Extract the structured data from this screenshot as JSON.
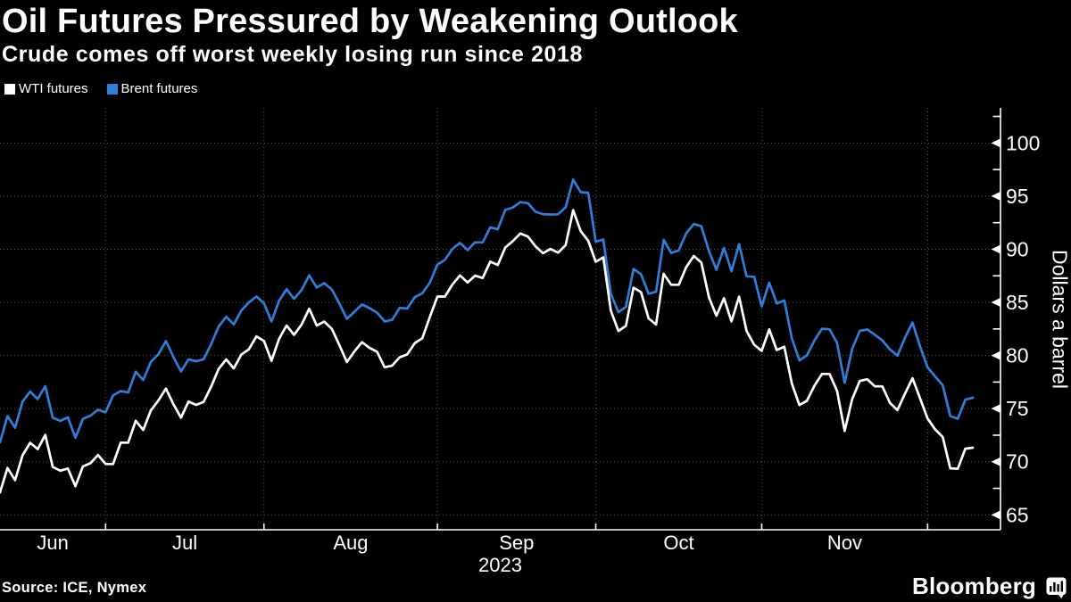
{
  "header": {
    "title": "Oil Futures Pressured by Weakening Outlook",
    "subtitle": "Crude comes off worst weekly losing run since 2018"
  },
  "footer": {
    "source": "Source: ICE, Nymex",
    "brand": "Bloomberg"
  },
  "colors": {
    "background": "#000000",
    "text": "#FFFFFF",
    "grid": "#545454",
    "wti": "#FFFFFF",
    "brent": "#2F7ED9"
  },
  "chart_data": {
    "type": "line",
    "title": "Oil Futures Pressured by Weakening Outlook",
    "subtitle": "Crude comes off worst weekly losing run since 2018",
    "ylabel": "Dollars a barrel",
    "xlabel": "",
    "ylim": [
      63.6,
      103.3
    ],
    "yticks": [
      65,
      70,
      75,
      80,
      85,
      90,
      95,
      100
    ],
    "y_minor_ticks": [
      67.5,
      72.5,
      77.5,
      82.5,
      87.5,
      92.5,
      97.5,
      102.5
    ],
    "grid": "dotted",
    "legend_position": "top-left",
    "x_axis": {
      "year_label": "2023",
      "month_labels": [
        "Jun",
        "Jul",
        "Aug",
        "Sep",
        "Oct",
        "Nov"
      ],
      "month_start_indices": [
        14,
        35,
        58,
        79,
        101,
        123
      ]
    },
    "dates": [
      "2023-06-12",
      "2023-06-13",
      "2023-06-14",
      "2023-06-15",
      "2023-06-16",
      "2023-06-20",
      "2023-06-21",
      "2023-06-22",
      "2023-06-23",
      "2023-06-26",
      "2023-06-27",
      "2023-06-28",
      "2023-06-29",
      "2023-06-30",
      "2023-07-03",
      "2023-07-04",
      "2023-07-05",
      "2023-07-06",
      "2023-07-07",
      "2023-07-10",
      "2023-07-11",
      "2023-07-12",
      "2023-07-13",
      "2023-07-14",
      "2023-07-17",
      "2023-07-18",
      "2023-07-19",
      "2023-07-20",
      "2023-07-21",
      "2023-07-24",
      "2023-07-25",
      "2023-07-26",
      "2023-07-27",
      "2023-07-28",
      "2023-07-31",
      "2023-08-01",
      "2023-08-02",
      "2023-08-03",
      "2023-08-04",
      "2023-08-07",
      "2023-08-08",
      "2023-08-09",
      "2023-08-10",
      "2023-08-11",
      "2023-08-14",
      "2023-08-15",
      "2023-08-16",
      "2023-08-17",
      "2023-08-18",
      "2023-08-21",
      "2023-08-22",
      "2023-08-23",
      "2023-08-24",
      "2023-08-25",
      "2023-08-28",
      "2023-08-29",
      "2023-08-30",
      "2023-08-31",
      "2023-09-01",
      "2023-09-04",
      "2023-09-05",
      "2023-09-06",
      "2023-09-07",
      "2023-09-08",
      "2023-09-11",
      "2023-09-12",
      "2023-09-13",
      "2023-09-14",
      "2023-09-15",
      "2023-09-18",
      "2023-09-19",
      "2023-09-20",
      "2023-09-21",
      "2023-09-22",
      "2023-09-25",
      "2023-09-26",
      "2023-09-27",
      "2023-09-28",
      "2023-09-29",
      "2023-10-02",
      "2023-10-03",
      "2023-10-04",
      "2023-10-05",
      "2023-10-06",
      "2023-10-09",
      "2023-10-10",
      "2023-10-11",
      "2023-10-12",
      "2023-10-13",
      "2023-10-16",
      "2023-10-17",
      "2023-10-18",
      "2023-10-19",
      "2023-10-20",
      "2023-10-23",
      "2023-10-24",
      "2023-10-25",
      "2023-10-26",
      "2023-10-27",
      "2023-10-30",
      "2023-10-31",
      "2023-11-01",
      "2023-11-02",
      "2023-11-03",
      "2023-11-06",
      "2023-11-07",
      "2023-11-08",
      "2023-11-09",
      "2023-11-10",
      "2023-11-13",
      "2023-11-14",
      "2023-11-15",
      "2023-11-16",
      "2023-11-17",
      "2023-11-20",
      "2023-11-21",
      "2023-11-22",
      "2023-11-23",
      "2023-11-24",
      "2023-11-27",
      "2023-11-28",
      "2023-11-29",
      "2023-11-30",
      "2023-12-01",
      "2023-12-04",
      "2023-12-05",
      "2023-12-06",
      "2023-12-07",
      "2023-12-08",
      "2023-12-11"
    ],
    "series": [
      {
        "name": "WTI futures",
        "color": "#FFFFFF",
        "values": [
          67.12,
          69.42,
          68.27,
          70.62,
          71.78,
          71.19,
          72.53,
          69.51,
          69.16,
          69.37,
          67.7,
          69.56,
          69.86,
          70.64,
          69.79,
          69.79,
          71.79,
          71.8,
          73.86,
          72.99,
          74.83,
          75.75,
          76.89,
          75.42,
          74.15,
          75.66,
          75.35,
          75.63,
          77.07,
          78.74,
          79.63,
          78.78,
          80.09,
          80.58,
          81.8,
          81.37,
          79.49,
          81.55,
          82.82,
          81.94,
          82.92,
          84.4,
          82.82,
          83.19,
          82.51,
          80.99,
          79.38,
          80.39,
          81.25,
          80.72,
          80.35,
          78.89,
          79.05,
          79.83,
          80.1,
          81.16,
          81.63,
          83.63,
          85.55,
          85.55,
          86.69,
          87.54,
          86.87,
          87.51,
          87.29,
          88.84,
          88.52,
          90.16,
          90.77,
          91.48,
          91.2,
          90.28,
          89.63,
          90.03,
          89.68,
          90.39,
          93.68,
          91.71,
          90.79,
          88.82,
          89.23,
          84.22,
          82.31,
          82.79,
          86.38,
          85.97,
          83.49,
          82.91,
          87.69,
          86.66,
          86.66,
          88.32,
          89.37,
          88.75,
          85.49,
          83.74,
          85.39,
          83.21,
          85.54,
          82.31,
          81.02,
          80.44,
          82.46,
          80.51,
          80.82,
          77.37,
          75.33,
          75.74,
          77.17,
          78.26,
          78.26,
          76.66,
          72.9,
          75.89,
          77.6,
          77.77,
          77.1,
          77.1,
          75.54,
          74.86,
          76.41,
          77.86,
          75.96,
          74.07,
          73.04,
          72.32,
          69.38,
          69.34,
          71.23,
          71.32
        ]
      },
      {
        "name": "Brent futures",
        "color": "#2F7ED9",
        "values": [
          71.84,
          74.29,
          73.2,
          75.67,
          76.61,
          75.9,
          77.12,
          74.14,
          73.85,
          74.18,
          72.26,
          74.03,
          74.34,
          74.9,
          74.65,
          76.25,
          76.65,
          76.52,
          78.47,
          77.69,
          79.4,
          80.11,
          81.36,
          79.87,
          78.5,
          79.63,
          79.46,
          79.64,
          81.07,
          82.74,
          83.64,
          82.92,
          84.24,
          84.99,
          85.56,
          84.91,
          83.2,
          85.14,
          86.24,
          85.34,
          86.17,
          87.55,
          86.4,
          86.81,
          86.21,
          84.89,
          83.45,
          84.12,
          84.8,
          84.46,
          84.03,
          83.21,
          83.36,
          84.48,
          84.42,
          85.49,
          85.86,
          86.86,
          88.55,
          89.0,
          90.04,
          90.6,
          89.92,
          90.65,
          90.64,
          92.06,
          91.88,
          93.7,
          93.93,
          94.43,
          94.34,
          93.53,
          93.3,
          93.27,
          93.29,
          93.96,
          96.55,
          95.38,
          95.31,
          90.71,
          90.92,
          85.81,
          84.07,
          84.58,
          88.15,
          87.65,
          85.82,
          86.0,
          90.89,
          89.65,
          89.9,
          91.5,
          92.38,
          92.16,
          89.83,
          88.07,
          90.13,
          87.93,
          90.48,
          87.45,
          87.41,
          84.63,
          86.85,
          84.89,
          85.18,
          81.61,
          79.54,
          80.01,
          81.43,
          82.52,
          82.47,
          81.18,
          77.42,
          80.61,
          82.32,
          82.45,
          81.96,
          81.42,
          80.58,
          79.98,
          81.68,
          83.1,
          80.86,
          78.88,
          78.03,
          77.2,
          74.3,
          74.05,
          75.84,
          76.03
        ]
      }
    ]
  }
}
